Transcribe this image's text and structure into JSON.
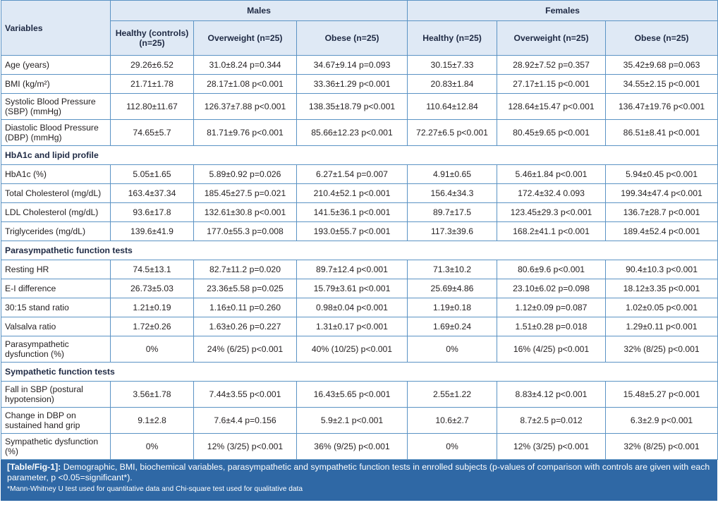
{
  "headers": {
    "variables": "Variables",
    "males": "Males",
    "females": "Females",
    "male_cols": [
      "Healthy (controls) (n=25)",
      "Overweight (n=25)",
      "Obese (n=25)"
    ],
    "female_cols": [
      "Healthy (n=25)",
      "Overweight (n=25)",
      "Obese (n=25)"
    ]
  },
  "rows": [
    {
      "label": "Age (years)",
      "values": [
        "29.26±6.52",
        "31.0±8.24 p=0.344",
        "34.67±9.14 p=0.093",
        "30.15±7.33",
        "28.92±7.52 p=0.357",
        "35.42±9.68 p=0.063"
      ]
    },
    {
      "label": "BMI (kg/m²)",
      "values": [
        "21.71±1.78",
        "28.17±1.08 p<0.001",
        "33.36±1.29 p<0.001",
        "20.83±1.84",
        "27.17±1.15 p<0.001",
        "34.55±2.15 p<0.001"
      ]
    },
    {
      "label": "Systolic Blood Pressure (SBP) (mmHg)",
      "values": [
        "112.80±11.67",
        "126.37±7.88 p<0.001",
        "138.35±18.79 p<0.001",
        "110.64±12.84",
        "128.64±15.47 p<0.001",
        "136.47±19.76 p<0.001"
      ]
    },
    {
      "label": "Diastolic Blood Pressure (DBP) (mmHg)",
      "values": [
        "74.65±5.7",
        "81.71±9.76 p<0.001",
        "85.66±12.23 p<0.001",
        "72.27±6.5 p<0.001",
        "80.45±9.65 p<0.001",
        "86.51±8.41 p<0.001"
      ]
    },
    {
      "section": "HbA1c and lipid profile"
    },
    {
      "label": "HbA1c (%)",
      "values": [
        "5.05±1.65",
        "5.89±0.92 p=0.026",
        "6.27±1.54 p=0.007",
        "4.91±0.65",
        "5.46±1.84 p<0.001",
        "5.94±0.45 p<0.001"
      ]
    },
    {
      "label": "Total Cholesterol (mg/dL)",
      "values": [
        "163.4±37.34",
        "185.45±27.5 p=0.021",
        "210.4±52.1 p<0.001",
        "156.4±34.3",
        "172.4±32.4 0.093",
        "199.34±47.4 p<0.001"
      ]
    },
    {
      "label": "LDL Cholesterol (mg/dL)",
      "values": [
        "93.6±17.8",
        "132.61±30.8 p<0.001",
        "141.5±36.1 p<0.001",
        "89.7±17.5",
        "123.45±29.3 p<0.001",
        "136.7±28.7 p<0.001"
      ]
    },
    {
      "label": "Triglycerides (mg/dL)",
      "values": [
        "139.6±41.9",
        "177.0±55.3 p=0.008",
        "193.0±55.7 p<0.001",
        "117.3±39.6",
        "168.2±41.1 p<0.001",
        "189.4±52.4 p<0.001"
      ]
    },
    {
      "section": "Parasympathetic function tests"
    },
    {
      "label": "Resting HR",
      "values": [
        "74.5±13.1",
        "82.7±11.2 p=0.020",
        "89.7±12.4 p<0.001",
        "71.3±10.2",
        "80.6±9.6 p<0.001",
        "90.4±10.3 p<0.001"
      ]
    },
    {
      "label": "E-I difference",
      "values": [
        "26.73±5.03",
        "23.36±5.58 p=0.025",
        "15.79±3.61 p<0.001",
        "25.69±4.86",
        "23.10±6.02 p=0.098",
        "18.12±3.35 p<0.001"
      ]
    },
    {
      "label": "30:15 stand ratio",
      "values": [
        "1.21±0.19",
        "1.16±0.11 p=0.260",
        "0.98±0.04 p<0.001",
        "1.19±0.18",
        "1.12±0.09 p=0.087",
        "1.02±0.05 p<0.001"
      ]
    },
    {
      "label": "Valsalva ratio",
      "values": [
        "1.72±0.26",
        "1.63±0.26 p=0.227",
        "1.31±0.17 p<0.001",
        "1.69±0.24",
        "1.51±0.28 p=0.018",
        "1.29±0.11 p<0.001"
      ]
    },
    {
      "label": "Parasympathetic dysfunction (%)",
      "values": [
        "0%",
        "24% (6/25) p<0.001",
        "40% (10/25) p<0.001",
        "0%",
        "16% (4/25) p<0.001",
        "32% (8/25) p<0.001"
      ]
    },
    {
      "section": "Sympathetic function tests"
    },
    {
      "label": "Fall in SBP (postural hypotension)",
      "values": [
        "3.56±1.78",
        "7.44±3.55 p<0.001",
        "16.43±5.65 p<0.001",
        "2.55±1.22",
        "8.83±4.12 p<0.001",
        "15.48±5.27 p<0.001"
      ]
    },
    {
      "label": "Change in DBP on sustained hand grip",
      "values": [
        "9.1±2.8",
        "7.6±4.4 p=0.156",
        "5.9±2.1 p<0.001",
        "10.6±2.7",
        "8.7±2.5 p=0.012",
        "6.3±2.9 p<0.001"
      ]
    },
    {
      "label": "Sympathetic dysfunction (%)",
      "values": [
        "0%",
        "12% (3/25) p<0.001",
        "36% (9/25) p<0.001",
        "0%",
        "12% (3/25) p<0.001",
        "32% (8/25) p<0.001"
      ]
    }
  ],
  "caption": {
    "tag": "[Table/Fig-1]:",
    "text": "Demographic, BMI, biochemical variables, parasympathetic and sympathetic function tests in enrolled subjects (p-values of comparison with controls are given with each parameter, p <0.05=significant*).",
    "note": "*Mann-Whitney U test used for quantitative data and Chi-square test used for qualitative data"
  },
  "colors": {
    "header_bg": "#dfe9f5",
    "border": "#5b93c4",
    "caption_bg": "#2f68a5"
  }
}
